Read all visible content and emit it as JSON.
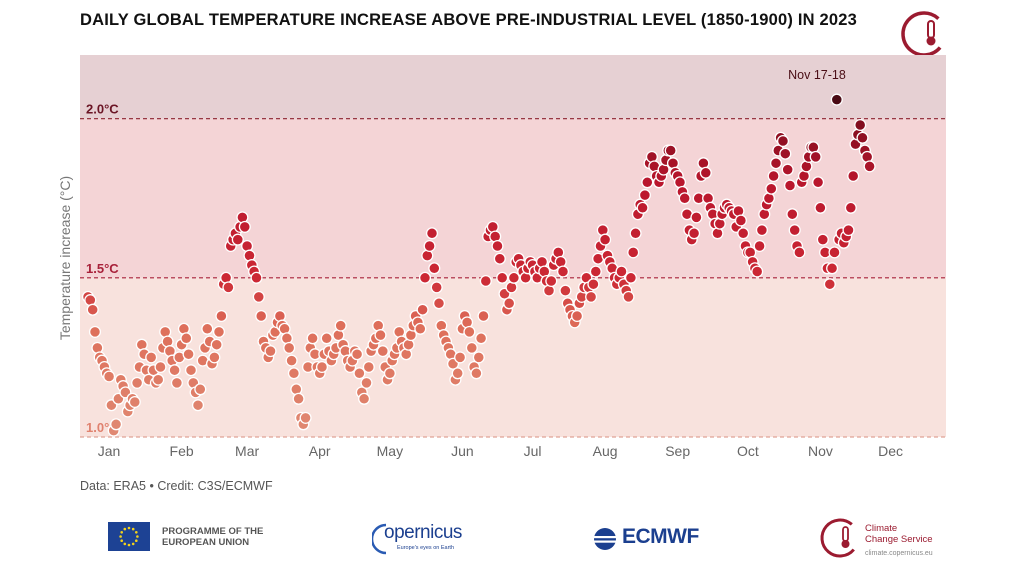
{
  "chart_data": {
    "type": "scatter",
    "title": "DAILY GLOBAL TEMPERATURE INCREASE ABOVE PRE-INDUSTRIAL LEVEL (1850-1900) IN 2023",
    "ylabel": "Temperature increase (°C)",
    "xlabel": "",
    "ylim": [
      1.0,
      2.2
    ],
    "months": [
      "Jan",
      "Feb",
      "Mar",
      "Apr",
      "May",
      "Jun",
      "Jul",
      "Aug",
      "Sep",
      "Oct",
      "Nov",
      "Dec"
    ],
    "thresholds": [
      {
        "value": 1.0,
        "label": "1.0°C"
      },
      {
        "value": 1.5,
        "label": "1.5°C"
      },
      {
        "value": 2.0,
        "label": "2.0°C"
      }
    ],
    "annotation": {
      "label": "Nov 17-18",
      "day": 321,
      "value": 2.06
    },
    "anchors": [
      [
        1,
        1.44
      ],
      [
        2,
        1.43
      ],
      [
        3,
        1.4
      ],
      [
        4,
        1.33
      ],
      [
        5,
        1.28
      ],
      [
        6,
        1.25
      ],
      [
        7,
        1.24
      ],
      [
        8,
        1.22
      ],
      [
        9,
        1.2
      ],
      [
        10,
        1.19
      ],
      [
        11,
        1.1
      ],
      [
        12,
        1.02
      ],
      [
        13,
        1.04
      ],
      [
        14,
        1.12
      ],
      [
        15,
        1.18
      ],
      [
        16,
        1.16
      ],
      [
        17,
        1.14
      ],
      [
        18,
        1.08
      ],
      [
        19,
        1.1
      ],
      [
        20,
        1.12
      ],
      [
        21,
        1.11
      ],
      [
        22,
        1.17
      ],
      [
        23,
        1.22
      ],
      [
        24,
        1.29
      ],
      [
        25,
        1.26
      ],
      [
        26,
        1.21
      ],
      [
        27,
        1.18
      ],
      [
        28,
        1.25
      ],
      [
        29,
        1.21
      ],
      [
        30,
        1.17
      ],
      [
        31,
        1.18
      ],
      [
        32,
        1.22
      ],
      [
        33,
        1.28
      ],
      [
        34,
        1.33
      ],
      [
        35,
        1.3
      ],
      [
        36,
        1.27
      ],
      [
        37,
        1.24
      ],
      [
        38,
        1.21
      ],
      [
        39,
        1.17
      ],
      [
        40,
        1.25
      ],
      [
        41,
        1.29
      ],
      [
        42,
        1.34
      ],
      [
        43,
        1.31
      ],
      [
        44,
        1.26
      ],
      [
        45,
        1.21
      ],
      [
        46,
        1.17
      ],
      [
        47,
        1.14
      ],
      [
        48,
        1.1
      ],
      [
        49,
        1.15
      ],
      [
        50,
        1.24
      ],
      [
        51,
        1.28
      ],
      [
        52,
        1.34
      ],
      [
        53,
        1.3
      ],
      [
        54,
        1.23
      ],
      [
        55,
        1.25
      ],
      [
        56,
        1.29
      ],
      [
        57,
        1.33
      ],
      [
        58,
        1.38
      ],
      [
        59,
        1.48
      ],
      [
        60,
        1.5
      ],
      [
        61,
        1.47
      ],
      [
        62,
        1.6
      ],
      [
        63,
        1.62
      ],
      [
        64,
        1.64
      ],
      [
        65,
        1.62
      ],
      [
        66,
        1.66
      ],
      [
        67,
        1.69
      ],
      [
        68,
        1.66
      ],
      [
        69,
        1.6
      ],
      [
        70,
        1.57
      ],
      [
        71,
        1.54
      ],
      [
        72,
        1.52
      ],
      [
        73,
        1.5
      ],
      [
        74,
        1.44
      ],
      [
        75,
        1.38
      ],
      [
        76,
        1.3
      ],
      [
        77,
        1.28
      ],
      [
        78,
        1.25
      ],
      [
        79,
        1.27
      ],
      [
        80,
        1.32
      ],
      [
        81,
        1.33
      ],
      [
        82,
        1.36
      ],
      [
        83,
        1.38
      ],
      [
        84,
        1.35
      ],
      [
        85,
        1.34
      ],
      [
        86,
        1.31
      ],
      [
        87,
        1.28
      ],
      [
        88,
        1.24
      ],
      [
        89,
        1.2
      ],
      [
        90,
        1.15
      ],
      [
        91,
        1.12
      ],
      [
        92,
        1.06
      ],
      [
        93,
        1.04
      ],
      [
        94,
        1.06
      ],
      [
        95,
        1.22
      ],
      [
        96,
        1.28
      ],
      [
        97,
        1.31
      ],
      [
        98,
        1.26
      ],
      [
        99,
        1.22
      ],
      [
        100,
        1.2
      ],
      [
        101,
        1.22
      ],
      [
        102,
        1.26
      ],
      [
        103,
        1.31
      ],
      [
        104,
        1.27
      ],
      [
        105,
        1.24
      ],
      [
        106,
        1.26
      ],
      [
        107,
        1.28
      ],
      [
        108,
        1.32
      ],
      [
        109,
        1.35
      ],
      [
        110,
        1.29
      ],
      [
        111,
        1.27
      ],
      [
        112,
        1.24
      ],
      [
        113,
        1.22
      ],
      [
        114,
        1.24
      ],
      [
        115,
        1.27
      ],
      [
        116,
        1.26
      ],
      [
        117,
        1.2
      ],
      [
        118,
        1.14
      ],
      [
        119,
        1.12
      ],
      [
        120,
        1.17
      ],
      [
        121,
        1.22
      ],
      [
        122,
        1.27
      ],
      [
        123,
        1.29
      ],
      [
        124,
        1.31
      ],
      [
        125,
        1.35
      ],
      [
        126,
        1.32
      ],
      [
        127,
        1.27
      ],
      [
        128,
        1.22
      ],
      [
        129,
        1.18
      ],
      [
        130,
        1.2
      ],
      [
        131,
        1.24
      ],
      [
        132,
        1.26
      ],
      [
        133,
        1.28
      ],
      [
        134,
        1.33
      ],
      [
        135,
        1.3
      ],
      [
        136,
        1.28
      ],
      [
        137,
        1.26
      ],
      [
        138,
        1.29
      ],
      [
        139,
        1.32
      ],
      [
        140,
        1.35
      ],
      [
        141,
        1.38
      ],
      [
        142,
        1.36
      ],
      [
        143,
        1.34
      ],
      [
        144,
        1.4
      ],
      [
        145,
        1.5
      ],
      [
        146,
        1.57
      ],
      [
        147,
        1.6
      ],
      [
        148,
        1.64
      ],
      [
        149,
        1.53
      ],
      [
        150,
        1.47
      ],
      [
        151,
        1.42
      ],
      [
        152,
        1.35
      ],
      [
        153,
        1.32
      ],
      [
        154,
        1.3
      ],
      [
        155,
        1.28
      ],
      [
        156,
        1.26
      ],
      [
        157,
        1.23
      ],
      [
        158,
        1.18
      ],
      [
        159,
        1.2
      ],
      [
        160,
        1.25
      ],
      [
        161,
        1.34
      ],
      [
        162,
        1.38
      ],
      [
        163,
        1.36
      ],
      [
        164,
        1.33
      ],
      [
        165,
        1.28
      ],
      [
        166,
        1.22
      ],
      [
        167,
        1.2
      ],
      [
        168,
        1.25
      ],
      [
        169,
        1.31
      ],
      [
        170,
        1.38
      ],
      [
        171,
        1.49
      ],
      [
        172,
        1.63
      ],
      [
        173,
        1.65
      ],
      [
        174,
        1.66
      ],
      [
        175,
        1.63
      ],
      [
        176,
        1.6
      ],
      [
        177,
        1.56
      ],
      [
        178,
        1.5
      ],
      [
        179,
        1.45
      ],
      [
        180,
        1.4
      ],
      [
        181,
        1.42
      ],
      [
        182,
        1.47
      ],
      [
        183,
        1.5
      ],
      [
        184,
        1.55
      ],
      [
        185,
        1.56
      ],
      [
        186,
        1.54
      ],
      [
        187,
        1.52
      ],
      [
        188,
        1.5
      ],
      [
        189,
        1.53
      ],
      [
        190,
        1.55
      ],
      [
        191,
        1.54
      ],
      [
        192,
        1.52
      ],
      [
        193,
        1.5
      ],
      [
        194,
        1.53
      ],
      [
        195,
        1.55
      ],
      [
        196,
        1.52
      ],
      [
        197,
        1.49
      ],
      [
        198,
        1.46
      ],
      [
        199,
        1.49
      ],
      [
        200,
        1.54
      ],
      [
        201,
        1.56
      ],
      [
        202,
        1.58
      ],
      [
        203,
        1.55
      ],
      [
        204,
        1.52
      ],
      [
        205,
        1.46
      ],
      [
        206,
        1.42
      ],
      [
        207,
        1.4
      ],
      [
        208,
        1.38
      ],
      [
        209,
        1.36
      ],
      [
        210,
        1.38
      ],
      [
        211,
        1.42
      ],
      [
        212,
        1.44
      ],
      [
        213,
        1.47
      ],
      [
        214,
        1.5
      ],
      [
        215,
        1.47
      ],
      [
        216,
        1.44
      ],
      [
        217,
        1.48
      ],
      [
        218,
        1.52
      ],
      [
        219,
        1.56
      ],
      [
        220,
        1.6
      ],
      [
        221,
        1.65
      ],
      [
        222,
        1.62
      ],
      [
        223,
        1.57
      ],
      [
        224,
        1.55
      ],
      [
        225,
        1.53
      ],
      [
        226,
        1.5
      ],
      [
        227,
        1.48
      ],
      [
        228,
        1.5
      ],
      [
        229,
        1.52
      ],
      [
        230,
        1.48
      ],
      [
        231,
        1.46
      ],
      [
        232,
        1.44
      ],
      [
        233,
        1.5
      ],
      [
        234,
        1.58
      ],
      [
        235,
        1.64
      ],
      [
        236,
        1.7
      ],
      [
        237,
        1.73
      ],
      [
        238,
        1.72
      ],
      [
        239,
        1.76
      ],
      [
        240,
        1.8
      ],
      [
        241,
        1.86
      ],
      [
        242,
        1.88
      ],
      [
        243,
        1.85
      ],
      [
        244,
        1.82
      ],
      [
        245,
        1.8
      ],
      [
        246,
        1.82
      ],
      [
        247,
        1.84
      ],
      [
        248,
        1.87
      ],
      [
        249,
        1.9
      ],
      [
        250,
        1.9
      ],
      [
        251,
        1.86
      ],
      [
        252,
        1.83
      ],
      [
        253,
        1.82
      ],
      [
        254,
        1.8
      ],
      [
        255,
        1.77
      ],
      [
        256,
        1.75
      ],
      [
        257,
        1.7
      ],
      [
        258,
        1.65
      ],
      [
        259,
        1.62
      ],
      [
        260,
        1.64
      ],
      [
        261,
        1.69
      ],
      [
        262,
        1.75
      ],
      [
        263,
        1.82
      ],
      [
        264,
        1.86
      ],
      [
        265,
        1.83
      ],
      [
        266,
        1.75
      ],
      [
        267,
        1.72
      ],
      [
        268,
        1.7
      ],
      [
        269,
        1.67
      ],
      [
        270,
        1.64
      ],
      [
        271,
        1.67
      ],
      [
        272,
        1.7
      ],
      [
        273,
        1.72
      ],
      [
        274,
        1.73
      ],
      [
        275,
        1.72
      ],
      [
        276,
        1.71
      ],
      [
        277,
        1.7
      ],
      [
        278,
        1.66
      ],
      [
        279,
        1.71
      ],
      [
        280,
        1.68
      ],
      [
        281,
        1.64
      ],
      [
        282,
        1.6
      ],
      [
        283,
        1.58
      ],
      [
        284,
        1.58
      ],
      [
        285,
        1.55
      ],
      [
        286,
        1.53
      ],
      [
        287,
        1.52
      ],
      [
        288,
        1.6
      ],
      [
        289,
        1.65
      ],
      [
        290,
        1.7
      ],
      [
        291,
        1.73
      ],
      [
        292,
        1.75
      ],
      [
        293,
        1.78
      ],
      [
        294,
        1.82
      ],
      [
        295,
        1.86
      ],
      [
        296,
        1.9
      ],
      [
        297,
        1.94
      ],
      [
        298,
        1.93
      ],
      [
        299,
        1.89
      ],
      [
        300,
        1.84
      ],
      [
        301,
        1.79
      ],
      [
        302,
        1.7
      ],
      [
        303,
        1.65
      ],
      [
        304,
        1.6
      ],
      [
        305,
        1.58
      ],
      [
        306,
        1.8
      ],
      [
        307,
        1.82
      ],
      [
        308,
        1.85
      ],
      [
        309,
        1.88
      ],
      [
        310,
        1.91
      ],
      [
        311,
        1.91
      ],
      [
        312,
        1.88
      ],
      [
        313,
        1.8
      ],
      [
        314,
        1.72
      ],
      [
        315,
        1.62
      ],
      [
        316,
        1.58
      ],
      [
        317,
        1.53
      ],
      [
        318,
        1.48
      ],
      [
        319,
        1.53
      ],
      [
        320,
        1.58
      ],
      [
        321,
        2.06
      ],
      [
        322,
        1.62
      ],
      [
        323,
        1.64
      ],
      [
        324,
        1.61
      ],
      [
        325,
        1.63
      ],
      [
        326,
        1.65
      ],
      [
        327,
        1.72
      ],
      [
        328,
        1.82
      ],
      [
        329,
        1.92
      ],
      [
        330,
        1.95
      ],
      [
        331,
        1.98
      ],
      [
        332,
        1.94
      ],
      [
        333,
        1.9
      ],
      [
        334,
        1.88
      ],
      [
        335,
        1.85
      ]
    ]
  },
  "credit": "Data: ERA5 • Credit: C3S/ECMWF",
  "footer": {
    "eu_text": "PROGRAMME OF THE\nEUROPEAN UNION",
    "copernicus": "opernicus",
    "copernicus_tagline": "Europe's eyes on Earth",
    "ecmwf": "ECMWF",
    "c3s_text": "Climate\nChange Service",
    "c3s_url": "climate.copernicus.eu"
  }
}
